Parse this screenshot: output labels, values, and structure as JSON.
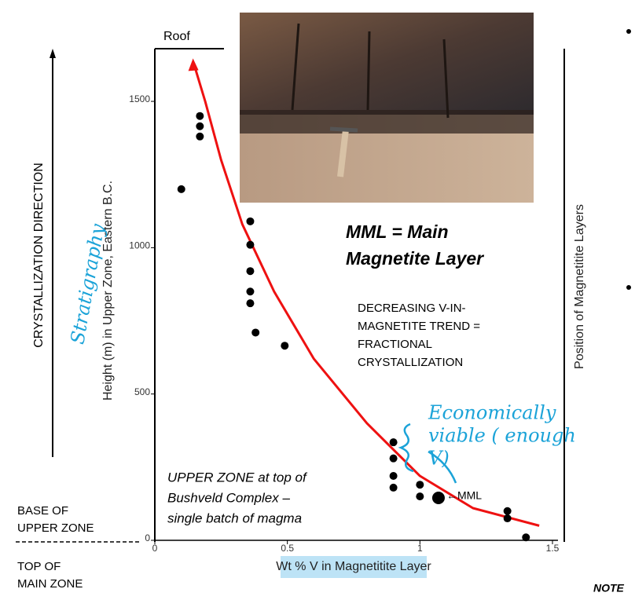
{
  "chart_data": {
    "type": "scatter",
    "x_label": "Wt % V in Magnetitite Layer",
    "y_label": "Height (m) in Upper Zone, Eastern B.C.",
    "right_label": "Position of Magnetitite Layers",
    "roof_label": "Roof",
    "direction_label": "CRYSTALLIZATION DIRECTION",
    "xlim": [
      0,
      1.5
    ],
    "ylim": [
      0,
      1680
    ],
    "xticks": [
      0,
      0.5,
      1,
      1.5
    ],
    "yticks": [
      0,
      500,
      1000,
      1500
    ],
    "series": [
      {
        "color": "#000000",
        "x": [
          0.1,
          0.17,
          0.17,
          0.17,
          0.36,
          0.36,
          0.36,
          0.36,
          0.36,
          0.38,
          0.49,
          0.9,
          0.9,
          0.9,
          0.9,
          1.0,
          1.0,
          1.33,
          1.33,
          1.4
        ],
        "y": [
          1200,
          1450,
          1415,
          1380,
          1090,
          1010,
          920,
          850,
          810,
          710,
          665,
          335,
          280,
          220,
          180,
          190,
          150,
          100,
          75,
          10
        ]
      }
    ],
    "mml_point": {
      "x": 1.07,
      "y": 145,
      "label": "←MML"
    },
    "trend": {
      "color": "#ee1111",
      "x": [
        1.45,
        1.2,
        1.0,
        0.8,
        0.6,
        0.45,
        0.33,
        0.25,
        0.19,
        0.15
      ],
      "y": [
        50,
        110,
        220,
        400,
        620,
        850,
        1080,
        1300,
        1500,
        1620
      ]
    },
    "annotations": {
      "mml_title": [
        "MML = Main",
        "Magnetite Layer"
      ],
      "trend_note": [
        "DECREASING V-IN-",
        "MAGNETITE TREND =",
        "FRACTIONAL",
        "CRYSTALLIZATION"
      ],
      "upper_zone": [
        "UPPER ZONE at top of",
        "Bushveld Complex –",
        "single batch of magma"
      ],
      "base": [
        "BASE OF",
        "UPPER ZONE"
      ],
      "top": [
        "TOP OF",
        "MAIN ZONE"
      ],
      "handwritten_stratigraphy": "Stratigraphy",
      "handwritten_viable": [
        "Economically",
        "viable ( enough",
        "V)"
      ],
      "note": "NOTE"
    }
  }
}
